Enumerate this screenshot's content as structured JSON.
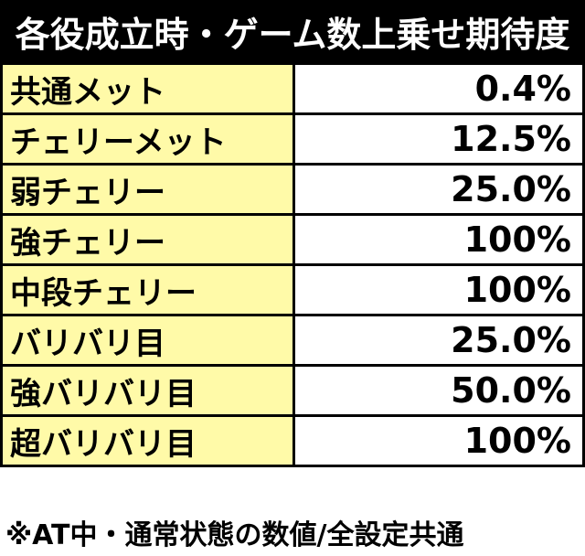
{
  "title": "各役成立時・ゲーム数上乗せ期待度",
  "rows": [
    {
      "label": "共通メット",
      "value": "0.4%"
    },
    {
      "label": "チェリーメット",
      "value": "12.5%"
    },
    {
      "label": "弱チェリー",
      "value": "25.0%"
    },
    {
      "label": "強チェリー",
      "value": "100%"
    },
    {
      "label": "中段チェリー",
      "value": "100%"
    },
    {
      "label": "バリバリ目",
      "value": "25.0%"
    },
    {
      "label": "強バリバリ目",
      "value": "50.0%"
    },
    {
      "label": "超バリバリ目",
      "value": "100%"
    }
  ],
  "footnote": "※AT中・通常状態の数値/全設定共通",
  "colors": {
    "header_bg": "#000000",
    "label_bg": "#fffaa8",
    "value_bg": "#ffffff",
    "border": "#000000"
  }
}
